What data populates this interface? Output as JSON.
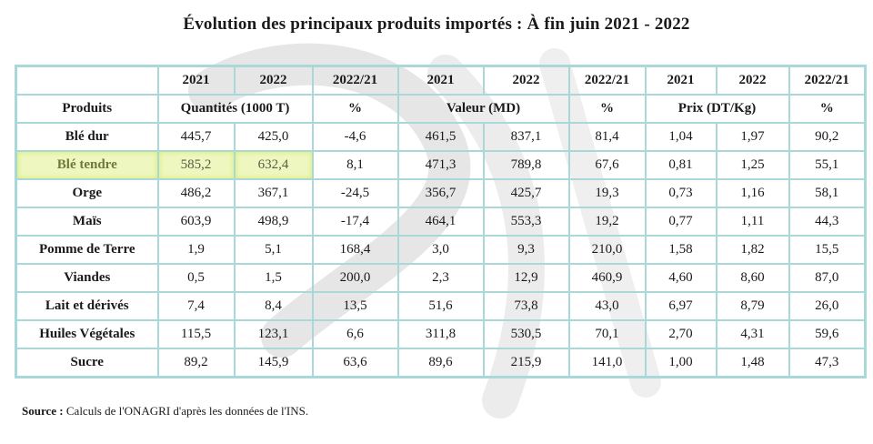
{
  "title": "Évolution des principaux produits importés : À fin juin 2021 - 2022",
  "headers": {
    "years": [
      "2021",
      "2022",
      "2022/21",
      "2021",
      "2022",
      "2022/21",
      "2021",
      "2022",
      "2022/21"
    ],
    "produits": "Produits",
    "quantites": "Quantités (1000 T)",
    "pct1": "%",
    "valeur": "Valeur (MD)",
    "pct2": "%",
    "prix": "Prix (DT/Kg)",
    "pct3": "%"
  },
  "rows": [
    {
      "name": "Blé dur",
      "values": [
        "445,7",
        "425,0",
        "-4,6",
        "461,5",
        "837,1",
        "81,4",
        "1,04",
        "1,97",
        "90,2"
      ]
    },
    {
      "name": "Blé tendre",
      "values": [
        "585,2",
        "632,4",
        "8,1",
        "471,3",
        "789,8",
        "67,6",
        "0,81",
        "1,25",
        "55,1"
      ],
      "highlighted": true
    },
    {
      "name": "Orge",
      "values": [
        "486,2",
        "367,1",
        "-24,5",
        "356,7",
        "425,7",
        "19,3",
        "0,73",
        "1,16",
        "58,1"
      ]
    },
    {
      "name": "Maïs",
      "values": [
        "603,9",
        "498,9",
        "-17,4",
        "464,1",
        "553,3",
        "19,2",
        "0,77",
        "1,11",
        "44,3"
      ]
    },
    {
      "name": "Pomme de Terre",
      "values": [
        "1,9",
        "5,1",
        "168,4",
        "3,0",
        "9,3",
        "210,0",
        "1,58",
        "1,82",
        "15,5"
      ]
    },
    {
      "name": "Viandes",
      "values": [
        "0,5",
        "1,5",
        "200,0",
        "2,3",
        "12,9",
        "460,9",
        "4,60",
        "8,60",
        "87,0"
      ]
    },
    {
      "name": "Lait et dérivés",
      "values": [
        "7,4",
        "8,4",
        "13,5",
        "51,6",
        "73,8",
        "43,0",
        "6,97",
        "8,79",
        "26,0"
      ]
    },
    {
      "name": "Huiles Végétales",
      "values": [
        "115,5",
        "123,1",
        "6,6",
        "311,8",
        "530,5",
        "70,1",
        "2,70",
        "4,31",
        "59,6"
      ]
    },
    {
      "name": "Sucre",
      "values": [
        "89,2",
        "145,9",
        "63,6",
        "89,6",
        "215,9",
        "141,0",
        "1,00",
        "1,48",
        "47,3"
      ]
    }
  ],
  "source": {
    "label": "Source :",
    "text": "Calculs de l'ONAGRI d'après les données de l'INS."
  },
  "colors": {
    "grid": "#a9d8d8",
    "highlight": "#eef7bf",
    "highlight_glow": "#d6ec6a",
    "watermark": "#e6e6e6"
  }
}
